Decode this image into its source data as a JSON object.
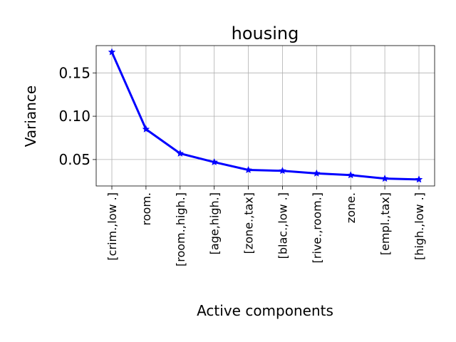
{
  "chart_data": {
    "type": "line",
    "title": "housing",
    "xlabel": "Active components",
    "ylabel": "Variance",
    "categories": [
      "[crim.,low .]",
      "room.",
      "[room.,high.]",
      "[age,high.]",
      "[zone.,tax]",
      "[blac.,low .]",
      "[rive.,room.]",
      "zone.",
      "[empl.,tax]",
      "[high.,low .]"
    ],
    "series": [
      {
        "values": [
          0.174,
          0.085,
          0.057,
          0.047,
          0.038,
          0.037,
          0.034,
          0.032,
          0.028,
          0.027
        ],
        "color": "#0000ff",
        "marker": "star"
      }
    ],
    "yticks": [
      0.05,
      0.1,
      0.15
    ],
    "ytick_labels": [
      "0.05",
      "0.10",
      "0.15"
    ],
    "ylim": [
      0.0195,
      0.1815
    ],
    "grid": true
  }
}
